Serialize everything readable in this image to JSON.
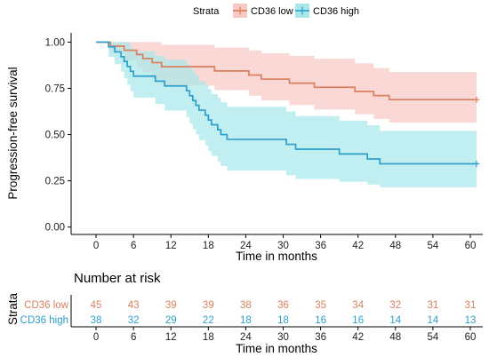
{
  "colors": {
    "cd36_low": "#D9805F",
    "cd36_high": "#2E9FC9",
    "cd36_low_band": "#F7C9C5",
    "cd36_high_band": "#A9E7EA"
  },
  "legend": {
    "title": "Strata",
    "items": [
      {
        "label": "CD36 low",
        "key": "cd36_low"
      },
      {
        "label": "CD36 high",
        "key": "cd36_high"
      }
    ]
  },
  "chart_data": [
    {
      "type": "line",
      "subtype": "kaplan-meier",
      "title": "",
      "xlabel": "Time in months",
      "ylabel": "Progression-free survival",
      "xlim": [
        -4,
        62
      ],
      "ylim": [
        -0.04,
        1.05
      ],
      "x_ticks": [
        0,
        6,
        12,
        18,
        24,
        30,
        36,
        42,
        48,
        54,
        60
      ],
      "y_ticks": [
        0.0,
        0.25,
        0.5,
        0.75,
        1.0
      ],
      "y_tick_labels": [
        "0.00",
        "0.25",
        "0.50",
        "0.75",
        "1.00"
      ],
      "grid": false,
      "legend_position": "top",
      "series": [
        {
          "name": "CD36 low",
          "key": "cd36_low",
          "steps": [
            [
              0,
              1.0
            ],
            [
              2.3,
              0.978
            ],
            [
              4.5,
              0.956
            ],
            [
              6.5,
              0.933
            ],
            [
              7.5,
              0.911
            ],
            [
              9.0,
              0.889
            ],
            [
              10.5,
              0.867
            ],
            [
              19.0,
              0.844
            ],
            [
              24.5,
              0.822
            ],
            [
              26.5,
              0.8
            ],
            [
              31.0,
              0.778
            ],
            [
              35.0,
              0.756
            ],
            [
              41.5,
              0.733
            ],
            [
              44.5,
              0.711
            ],
            [
              47.0,
              0.689
            ],
            [
              61.0,
              0.689
            ]
          ],
          "ci_upper": [
            [
              0,
              1.0
            ],
            [
              2.3,
              1.0
            ],
            [
              4.5,
              1.0
            ],
            [
              6.5,
              1.0
            ],
            [
              9.0,
              1.0
            ],
            [
              10.5,
              0.985
            ],
            [
              19.0,
              0.97
            ],
            [
              24.5,
              0.955
            ],
            [
              26.5,
              0.94
            ],
            [
              31.0,
              0.925
            ],
            [
              35.0,
              0.91
            ],
            [
              41.5,
              0.885
            ],
            [
              44.5,
              0.86
            ],
            [
              47.0,
              0.838
            ],
            [
              61.0,
              0.838
            ]
          ],
          "ci_lower": [
            [
              0,
              1.0
            ],
            [
              2.3,
              0.94
            ],
            [
              4.5,
              0.9
            ],
            [
              6.5,
              0.865
            ],
            [
              7.5,
              0.835
            ],
            [
              9.0,
              0.8
            ],
            [
              10.5,
              0.765
            ],
            [
              19.0,
              0.74
            ],
            [
              24.5,
              0.71
            ],
            [
              26.5,
              0.685
            ],
            [
              31.0,
              0.66
            ],
            [
              35.0,
              0.635
            ],
            [
              41.5,
              0.61
            ],
            [
              44.5,
              0.585
            ],
            [
              47.0,
              0.565
            ],
            [
              61.0,
              0.565
            ]
          ],
          "censor_marks": [
            [
              61.0,
              0.689
            ]
          ]
        },
        {
          "name": "CD36 high",
          "key": "cd36_high",
          "steps": [
            [
              0,
              1.0
            ],
            [
              2.0,
              0.974
            ],
            [
              3.0,
              0.947
            ],
            [
              4.0,
              0.921
            ],
            [
              4.5,
              0.895
            ],
            [
              5.0,
              0.868
            ],
            [
              5.5,
              0.842
            ],
            [
              6.0,
              0.816
            ],
            [
              9.5,
              0.789
            ],
            [
              11.0,
              0.763
            ],
            [
              14.5,
              0.737
            ],
            [
              15.0,
              0.71
            ],
            [
              15.5,
              0.684
            ],
            [
              16.0,
              0.658
            ],
            [
              16.5,
              0.632
            ],
            [
              17.5,
              0.605
            ],
            [
              18.0,
              0.579
            ],
            [
              18.5,
              0.553
            ],
            [
              19.5,
              0.526
            ],
            [
              20.0,
              0.5
            ],
            [
              21.0,
              0.474
            ],
            [
              30.5,
              0.447
            ],
            [
              32.0,
              0.421
            ],
            [
              39.0,
              0.395
            ],
            [
              43.5,
              0.368
            ],
            [
              45.5,
              0.342
            ],
            [
              61.0,
              0.342
            ]
          ],
          "ci_upper": [
            [
              0,
              1.0
            ],
            [
              2.0,
              1.0
            ],
            [
              3.0,
              1.0
            ],
            [
              4.0,
              1.0
            ],
            [
              5.0,
              1.0
            ],
            [
              5.5,
              0.97
            ],
            [
              6.0,
              0.95
            ],
            [
              9.5,
              0.925
            ],
            [
              11.0,
              0.905
            ],
            [
              14.5,
              0.88
            ],
            [
              15.0,
              0.86
            ],
            [
              15.5,
              0.84
            ],
            [
              16.0,
              0.82
            ],
            [
              16.5,
              0.79
            ],
            [
              17.5,
              0.77
            ],
            [
              18.0,
              0.745
            ],
            [
              18.5,
              0.72
            ],
            [
              19.5,
              0.7
            ],
            [
              20.0,
              0.675
            ],
            [
              21.0,
              0.65
            ],
            [
              30.5,
              0.625
            ],
            [
              32.0,
              0.6
            ],
            [
              39.0,
              0.575
            ],
            [
              43.5,
              0.55
            ],
            [
              45.5,
              0.52
            ],
            [
              61.0,
              0.52
            ]
          ],
          "ci_lower": [
            [
              0,
              1.0
            ],
            [
              2.0,
              0.92
            ],
            [
              3.0,
              0.88
            ],
            [
              4.0,
              0.84
            ],
            [
              4.5,
              0.805
            ],
            [
              5.0,
              0.77
            ],
            [
              5.5,
              0.735
            ],
            [
              6.0,
              0.7
            ],
            [
              9.5,
              0.665
            ],
            [
              11.0,
              0.63
            ],
            [
              14.5,
              0.595
            ],
            [
              15.0,
              0.56
            ],
            [
              15.5,
              0.53
            ],
            [
              16.0,
              0.5
            ],
            [
              16.5,
              0.47
            ],
            [
              17.5,
              0.44
            ],
            [
              18.0,
              0.41
            ],
            [
              18.5,
              0.385
            ],
            [
              19.5,
              0.355
            ],
            [
              20.0,
              0.33
            ],
            [
              21.0,
              0.305
            ],
            [
              30.5,
              0.28
            ],
            [
              32.0,
              0.26
            ],
            [
              39.0,
              0.245
            ],
            [
              43.5,
              0.23
            ],
            [
              45.5,
              0.215
            ],
            [
              61.0,
              0.215
            ]
          ],
          "censor_marks": [
            [
              61.0,
              0.342
            ]
          ]
        }
      ]
    },
    {
      "type": "table",
      "title": "Number at risk",
      "xlabel": "Time in months",
      "ylabel": "Strata",
      "times": [
        0,
        6,
        12,
        18,
        24,
        30,
        36,
        42,
        48,
        54,
        60
      ],
      "rows": [
        {
          "label": "CD36 low",
          "key": "cd36_low",
          "values": [
            45,
            43,
            39,
            39,
            38,
            36,
            35,
            34,
            32,
            31,
            31
          ]
        },
        {
          "label": "CD36 high",
          "key": "cd36_high",
          "values": [
            38,
            32,
            29,
            22,
            18,
            18,
            16,
            16,
            14,
            14,
            13
          ]
        }
      ]
    }
  ]
}
